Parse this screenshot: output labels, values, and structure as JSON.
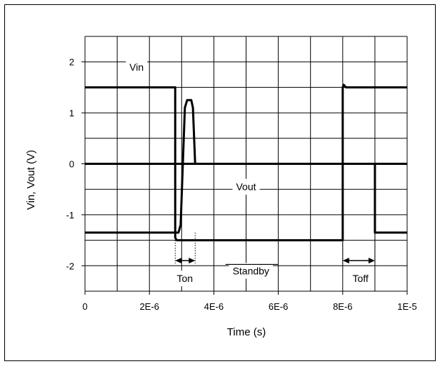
{
  "chart_data": {
    "type": "line",
    "xlabel": "Time (s)",
    "ylabel": "Vin, Vout (V)",
    "xlim": [
      0,
      1e-05
    ],
    "ylim": [
      -2.5,
      2.5
    ],
    "grid": true,
    "x_ticks": [
      {
        "value": 0,
        "label": "0"
      },
      {
        "value": 2e-06,
        "label": "2E-6"
      },
      {
        "value": 4e-06,
        "label": "4E-6"
      },
      {
        "value": 6e-06,
        "label": "6E-6"
      },
      {
        "value": 8e-06,
        "label": "8E-6"
      },
      {
        "value": 1e-05,
        "label": "1E-5"
      }
    ],
    "y_ticks": [
      {
        "value": 2,
        "label": "2"
      },
      {
        "value": 1,
        "label": "1"
      },
      {
        "value": 0,
        "label": "0"
      },
      {
        "value": -1,
        "label": "-1"
      },
      {
        "value": -2,
        "label": "-2"
      }
    ],
    "series": [
      {
        "id": "vin",
        "x": [
          0,
          2.8e-06,
          2.8e-06,
          2.85e-06,
          8e-06,
          8e-06,
          8.03e-06,
          8.1e-06,
          1e-05
        ],
        "y": [
          1.5,
          1.5,
          -1.45,
          -1.5,
          -1.5,
          1.5,
          1.55,
          1.5,
          1.5
        ]
      },
      {
        "id": "vout",
        "x": [
          0,
          2.8e-06,
          2.9e-06,
          2.97e-06,
          3.1e-06,
          3.17e-06,
          3.3e-06,
          3.35e-06,
          3.42e-06,
          9e-06,
          9e-06,
          1e-05
        ],
        "y": [
          -1.35,
          -1.35,
          -1.35,
          -1.2,
          1.1,
          1.25,
          1.25,
          1.1,
          0,
          0,
          -1.35,
          -1.35
        ]
      },
      {
        "id": "baseline",
        "x": [
          0,
          1e-05
        ],
        "y": [
          0,
          0
        ]
      }
    ],
    "annotations": [
      {
        "id": "vin-label",
        "text": "Vin",
        "x": 1.6e-06,
        "y": 1.9
      },
      {
        "id": "vout-label",
        "text": "Vout",
        "x": 5e-06,
        "y": -0.45
      },
      {
        "id": "ton-label",
        "text": "Ton",
        "x": 3.1e-06,
        "y": -2.25
      },
      {
        "id": "standby-label",
        "text": "Standby",
        "x": 5.15e-06,
        "y": -2.1,
        "overline": true
      },
      {
        "id": "toff-label",
        "text": "Toff",
        "x": 8.55e-06,
        "y": -2.25
      }
    ],
    "measurements": [
      {
        "id": "ton-arrow",
        "x1": 2.8e-06,
        "x2": 3.42e-06,
        "y": -1.9,
        "guides_from": [
          -1.45,
          -1.35
        ]
      },
      {
        "id": "toff-arrow",
        "x1": 8e-06,
        "x2": 9e-06,
        "y": -1.9,
        "guides_from": [
          -1.5,
          0
        ]
      }
    ]
  }
}
